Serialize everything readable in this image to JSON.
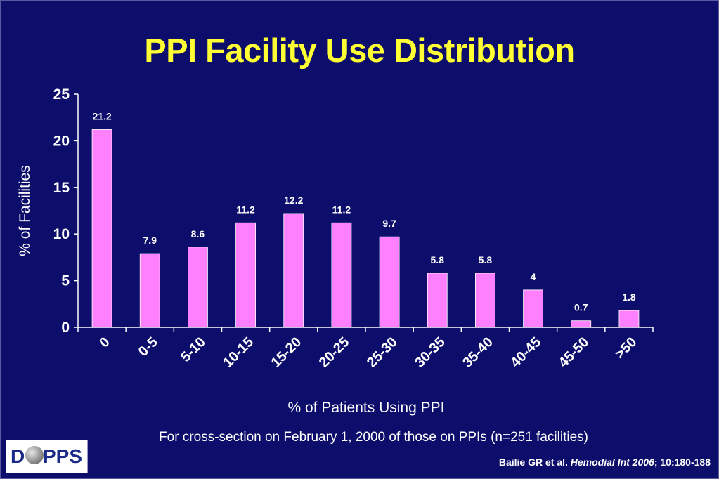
{
  "title": "PPI Facility Use Distribution",
  "footnote": "For cross-section on February 1, 2000 of those on PPIs (n=251 facilities)",
  "citation": {
    "prefix": "Bailie GR et al. ",
    "journal": "Hemodial Int 2006",
    "suffix": "; 10:180-188"
  },
  "logo": {
    "left": "D",
    "right": "PPS"
  },
  "colors": {
    "background": "#0d0d6b",
    "title": "#ffff33",
    "bar": "#ff80ff",
    "text": "#ffffff"
  },
  "chart_data": {
    "type": "bar",
    "xlabel": "% of Patients Using PPI",
    "ylabel": "% of Facilities",
    "categories": [
      "0",
      "0-5",
      "5-10",
      "10-15",
      "15-20",
      "20-25",
      "25-30",
      "30-35",
      "35-40",
      "40-45",
      "45-50",
      ">50"
    ],
    "values": [
      21.2,
      7.9,
      8.6,
      11.2,
      12.2,
      11.2,
      9.7,
      5.8,
      5.8,
      4,
      0.7,
      1.8
    ],
    "ylim": [
      0,
      25
    ],
    "yticks": [
      0,
      5,
      10,
      15,
      20,
      25
    ],
    "grid": false,
    "data_labels": true
  }
}
